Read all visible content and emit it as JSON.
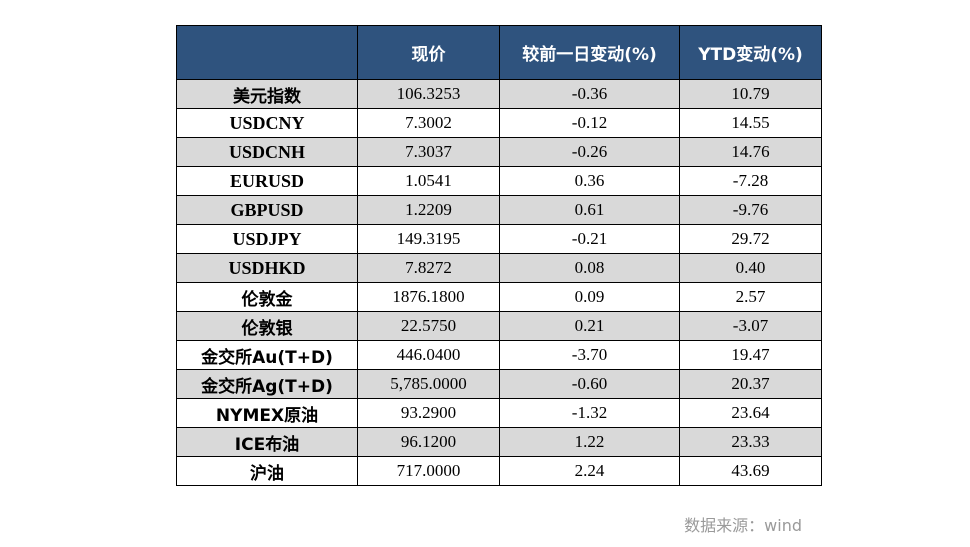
{
  "header": {
    "col0": "",
    "col1": "现价",
    "col2": "较前一日变动(%)",
    "col3": "YTD变动(%)"
  },
  "rows": [
    {
      "name": "美元指数",
      "price": "106.3253",
      "day": "-0.36",
      "ytd": "10.79"
    },
    {
      "name": "USDCNY",
      "price": "7.3002",
      "day": "-0.12",
      "ytd": "14.55"
    },
    {
      "name": "USDCNH",
      "price": "7.3037",
      "day": "-0.26",
      "ytd": "14.76"
    },
    {
      "name": "EURUSD",
      "price": "1.0541",
      "day": "0.36",
      "ytd": "-7.28"
    },
    {
      "name": "GBPUSD",
      "price": "1.2209",
      "day": "0.61",
      "ytd": "-9.76"
    },
    {
      "name": "USDJPY",
      "price": "149.3195",
      "day": "-0.21",
      "ytd": "29.72"
    },
    {
      "name": "USDHKD",
      "price": "7.8272",
      "day": "0.08",
      "ytd": "0.40"
    },
    {
      "name": "伦敦金",
      "price": "1876.1800",
      "day": "0.09",
      "ytd": "2.57"
    },
    {
      "name": "伦敦银",
      "price": "22.5750",
      "day": "0.21",
      "ytd": "-3.07"
    },
    {
      "name": "金交所Au(T+D)",
      "price": "446.0400",
      "day": "-3.70",
      "ytd": "19.47"
    },
    {
      "name": "金交所Ag(T+D)",
      "price": "5,785.0000",
      "day": "-0.60",
      "ytd": "20.37"
    },
    {
      "name": "NYMEX原油",
      "price": "93.2900",
      "day": "-1.32",
      "ytd": "23.64"
    },
    {
      "name": "ICE布油",
      "price": "96.1200",
      "day": "1.22",
      "ytd": "23.33"
    },
    {
      "name": "沪油",
      "price": "717.0000",
      "day": "2.24",
      "ytd": "43.69"
    }
  ],
  "source": "数据来源：wind",
  "colors": {
    "header_bg": "#2f537e",
    "shade_row": "#d9d9d9",
    "negative": "#e00000",
    "source_text": "#9a9a9a"
  }
}
